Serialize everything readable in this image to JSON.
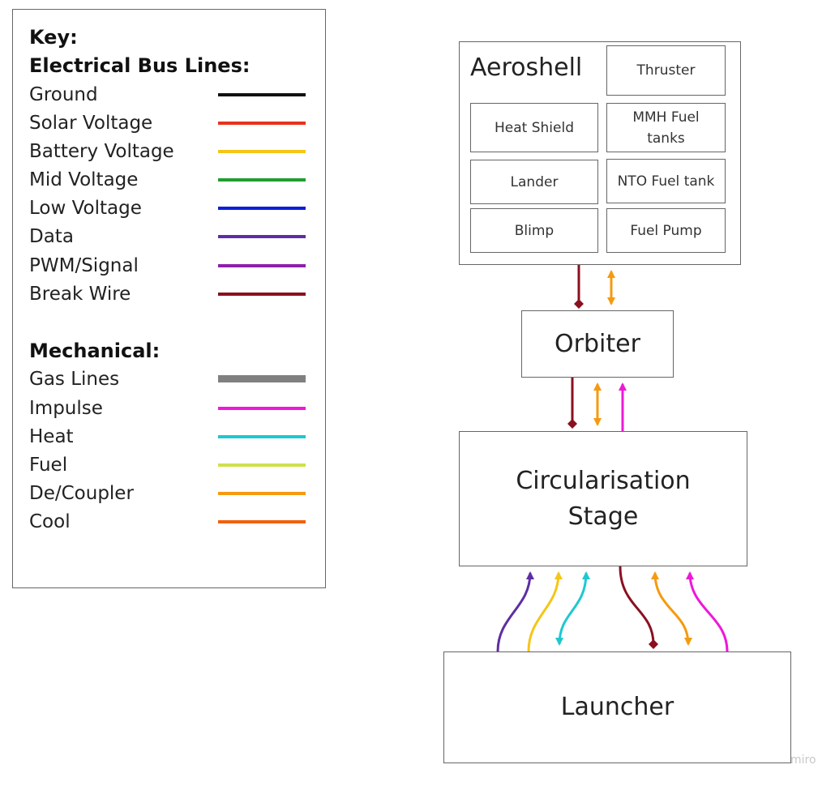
{
  "legend": {
    "key_title": "Key:",
    "electrical_title": "Electrical Bus Lines:",
    "electrical": [
      {
        "label": "Ground",
        "color": "#111111"
      },
      {
        "label": "Solar Voltage",
        "color": "#e8321e"
      },
      {
        "label": "Battery Voltage",
        "color": "#f5c518"
      },
      {
        "label": "Mid Voltage",
        "color": "#1f9e2f"
      },
      {
        "label": "Low Voltage",
        "color": "#0a1fd9"
      },
      {
        "label": "Data",
        "color": "#5e2ea3"
      },
      {
        "label": "PWM/Signal",
        "color": "#8e1fa8"
      },
      {
        "label": "Break Wire",
        "color": "#8a1020"
      }
    ],
    "mechanical_title": "Mechanical:",
    "mechanical": [
      {
        "label": "Gas Lines",
        "color": "#808080"
      },
      {
        "label": "Impulse",
        "color": "#ee18d8"
      },
      {
        "label": "Heat",
        "color": "#1ec8d0"
      },
      {
        "label": "Fuel",
        "color": "#cfe04a"
      },
      {
        "label": "De/Coupler",
        "color": "#f59a10"
      },
      {
        "label": "Cool",
        "color": "#f0600f"
      }
    ]
  },
  "aeroshell": {
    "title": "Aeroshell",
    "components": {
      "thruster": "Thruster",
      "heat_shield": "Heat Shield",
      "mmh_fuel_tanks": "MMH Fuel tanks",
      "lander": "Lander",
      "nto_fuel_tank": "NTO Fuel tank",
      "blimp": "Blimp",
      "fuel_pump": "Fuel Pump"
    }
  },
  "orbiter": {
    "label": "Orbiter"
  },
  "circularisation_stage": {
    "line1": "Circularisation",
    "line2": "Stage"
  },
  "launcher": {
    "label": "Launcher"
  },
  "watermark": "miro"
}
